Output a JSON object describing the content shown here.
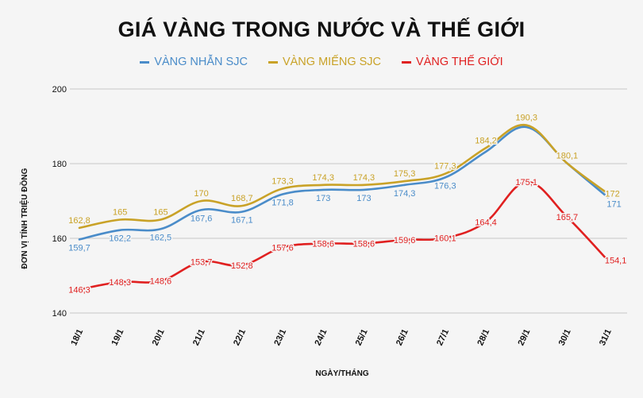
{
  "chart_data": {
    "type": "line",
    "title": "GIÁ VÀNG TRONG NƯỚC VÀ THẾ GIỚI",
    "xlabel": "NGÀY/THÁNG",
    "ylabel": "ĐƠN VỊ TÍNH TRIỆU ĐỒNG",
    "ylim": [
      140,
      200
    ],
    "yticks": [
      140,
      160,
      180,
      200
    ],
    "grid": true,
    "legend_position": "top",
    "categories": [
      "18/1",
      "19/1",
      "20/1",
      "21/1",
      "22/1",
      "23/1",
      "24/1",
      "25/1",
      "26/1",
      "27/1",
      "28/1",
      "29/1",
      "30/1",
      "31/1"
    ],
    "series": [
      {
        "name": "VÀNG NHẪN SJC",
        "color": "#4a8cc9",
        "values": [
          159.7,
          162.2,
          162.5,
          167.6,
          167.1,
          171.8,
          173,
          173,
          174.3,
          176.3,
          183.2,
          189.8,
          180.1,
          171
        ],
        "labels": [
          "159,7",
          "162,2",
          "162,5",
          "167,6",
          "167,1",
          "171,8",
          "173",
          "173",
          "174,3",
          "176,3",
          "",
          "",
          "",
          "171"
        ]
      },
      {
        "name": "VÀNG MIẾNG SJC",
        "color": "#c9a227",
        "values": [
          162.8,
          165,
          165,
          170,
          168.7,
          173.3,
          174.3,
          174.3,
          175.3,
          177.3,
          184.2,
          190.3,
          180.1,
          172
        ],
        "labels": [
          "162,8",
          "165",
          "165",
          "170",
          "168,7",
          "173,3",
          "174,3",
          "174,3",
          "175,3",
          "177,3",
          "184,2",
          "190,3",
          "180,1",
          "172"
        ]
      },
      {
        "name": "VÀNG THẾ GIỚI",
        "color": "#e02020",
        "values": [
          146.3,
          148.3,
          148.6,
          153.7,
          152.8,
          157.6,
          158.6,
          158.6,
          159.6,
          160.1,
          164.4,
          175.1,
          165.7,
          154.1
        ],
        "labels": [
          "146,3",
          "148,3",
          "148,6",
          "153,7",
          "152,8",
          "157,6",
          "158,6",
          "158,6",
          "159,6",
          "160,1",
          "164,4",
          "175,1",
          "165,7",
          "154,1"
        ]
      }
    ]
  }
}
